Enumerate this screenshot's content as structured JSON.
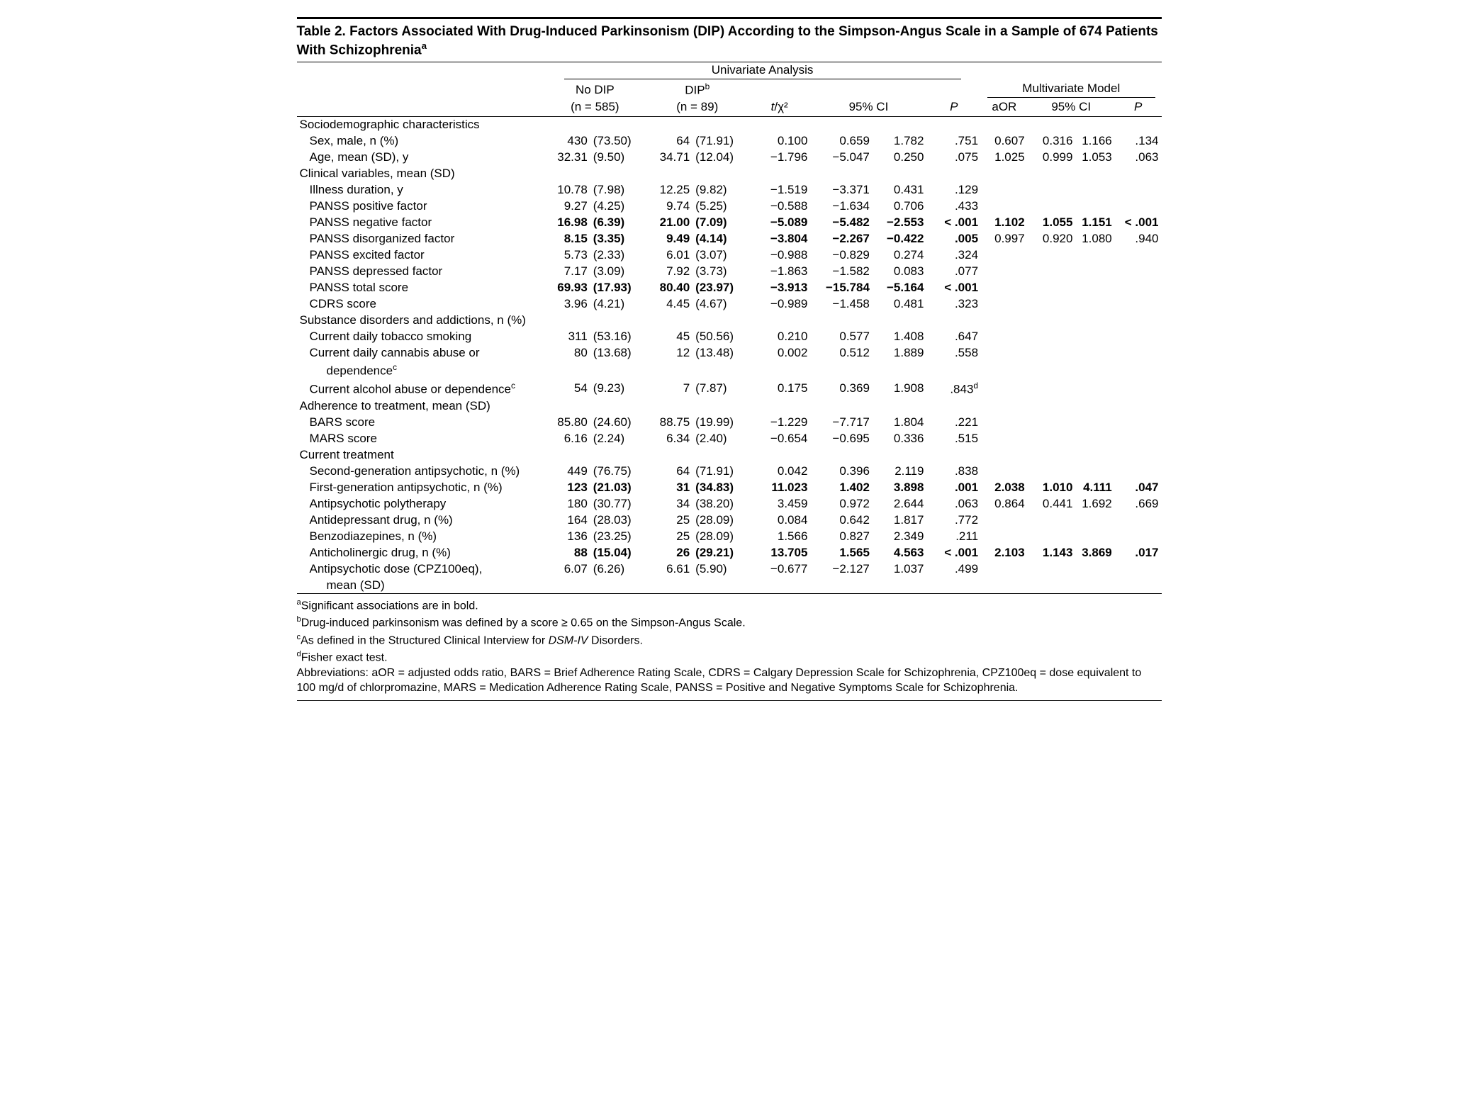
{
  "title": "Table 2. Factors Associated With Drug-Induced Parkinsonism (DIP) According to the Simpson-Angus Scale in a Sample of 674 Patients With Schizophrenia",
  "title_sup": "a",
  "headers": {
    "univariate": "Univariate Analysis",
    "multivariate": "Multivariate Model",
    "nodip_l1": "No DIP",
    "nodip_l2": "(n = 585)",
    "dip_l1_pre": "DIP",
    "dip_l1_sup": "b",
    "dip_l2": "(n = 89)",
    "stat_pre": "t",
    "stat_post": "/χ²",
    "ci": "95% CI",
    "p": "P",
    "aor": "aOR"
  },
  "sections": [
    {
      "label": "Sociodemographic characteristics",
      "rows": [
        {
          "label": "Sex, male, n (%)",
          "nd1": "430",
          "nd1p": "(73.50)",
          "nd2": "64",
          "nd2p": "(71.91)",
          "stat": "0.100",
          "cil": "0.659",
          "cih": "1.782",
          "p": ".751",
          "aor": "0.607",
          "mcil": "0.316",
          "mcih": "1.166",
          "mp": ".134"
        },
        {
          "label": "Age, mean (SD), y",
          "nd1": "32.31",
          "nd1p": "(9.50)",
          "nd2": "34.71",
          "nd2p": "(12.04)",
          "stat": "−1.796",
          "cil": "−5.047",
          "cih": "0.250",
          "p": ".075",
          "aor": "1.025",
          "mcil": "0.999",
          "mcih": "1.053",
          "mp": ".063"
        }
      ]
    },
    {
      "label": "Clinical variables, mean (SD)",
      "rows": [
        {
          "label": "Illness duration, y",
          "nd1": "10.78",
          "nd1p": "(7.98)",
          "nd2": "12.25",
          "nd2p": "(9.82)",
          "stat": "−1.519",
          "cil": "−3.371",
          "cih": "0.431",
          "p": ".129"
        },
        {
          "label": "PANSS positive factor",
          "nd1": "9.27",
          "nd1p": "(4.25)",
          "nd2": "9.74",
          "nd2p": "(5.25)",
          "stat": "−0.588",
          "cil": "−1.634",
          "cih": "0.706",
          "p": ".433"
        },
        {
          "label": "PANSS negative factor",
          "bold": true,
          "nd1": "16.98",
          "nd1p": "(6.39)",
          "nd2": "21.00",
          "nd2p": "(7.09)",
          "stat": "−5.089",
          "cil": "−5.482",
          "cih": "−2.553",
          "p": "< .001",
          "aor": "1.102",
          "mcil": "1.055",
          "mcih": "1.151",
          "mp": "< .001",
          "mbold": true
        },
        {
          "label": "PANSS disorganized factor",
          "bold": true,
          "nd1": "8.15",
          "nd1p": "(3.35)",
          "nd2": "9.49",
          "nd2p": "(4.14)",
          "stat": "−3.804",
          "cil": "−2.267",
          "cih": "−0.422",
          "p": ".005",
          "aor": "0.997",
          "mcil": "0.920",
          "mcih": "1.080",
          "mp": ".940"
        },
        {
          "label": "PANSS excited factor",
          "nd1": "5.73",
          "nd1p": "(2.33)",
          "nd2": "6.01",
          "nd2p": "(3.07)",
          "stat": "−0.988",
          "cil": "−0.829",
          "cih": "0.274",
          "p": ".324"
        },
        {
          "label": "PANSS depressed factor",
          "nd1": "7.17",
          "nd1p": "(3.09)",
          "nd2": "7.92",
          "nd2p": "(3.73)",
          "stat": "−1.863",
          "cil": "−1.582",
          "cih": "0.083",
          "p": ".077"
        },
        {
          "label": "PANSS total score",
          "bold": true,
          "nd1": "69.93",
          "nd1p": "(17.93)",
          "nd2": "80.40",
          "nd2p": "(23.97)",
          "stat": "−3.913",
          "cil": "−15.784",
          "cih": "−5.164",
          "p": "< .001"
        },
        {
          "label": "CDRS score",
          "nd1": "3.96",
          "nd1p": "(4.21)",
          "nd2": "4.45",
          "nd2p": "(4.67)",
          "stat": "−0.989",
          "cil": "−1.458",
          "cih": "0.481",
          "p": ".323"
        }
      ]
    },
    {
      "label": "Substance disorders and addictions, n (%)",
      "rows": [
        {
          "label": "Current daily tobacco smoking",
          "nd1": "311",
          "nd1p": "(53.16)",
          "nd2": "45",
          "nd2p": "(50.56)",
          "stat": "0.210",
          "cil": "0.577",
          "cih": "1.408",
          "p": ".647"
        },
        {
          "label": "Current daily cannabis abuse or",
          "label2": "dependence",
          "sup": "c",
          "nd1": "80",
          "nd1p": "(13.68)",
          "nd2": "12",
          "nd2p": "(13.48)",
          "stat": "0.002",
          "cil": "0.512",
          "cih": "1.889",
          "p": ".558"
        },
        {
          "label": "Current alcohol abuse or dependence",
          "sup_inline": "c",
          "nd1": "54",
          "nd1p": "(9.23)",
          "nd2": "7",
          "nd2p": "(7.87)",
          "stat": "0.175",
          "cil": "0.369",
          "cih": "1.908",
          "p": ".843",
          "p_sup": "d"
        }
      ]
    },
    {
      "label": "Adherence to treatment, mean (SD)",
      "rows": [
        {
          "label": "BARS score",
          "nd1": "85.80",
          "nd1p": "(24.60)",
          "nd2": "88.75",
          "nd2p": "(19.99)",
          "stat": "−1.229",
          "cil": "−7.717",
          "cih": "1.804",
          "p": ".221"
        },
        {
          "label": "MARS score",
          "nd1": "6.16",
          "nd1p": "(2.24)",
          "nd2": "6.34",
          "nd2p": "(2.40)",
          "stat": "−0.654",
          "cil": "−0.695",
          "cih": "0.336",
          "p": ".515"
        }
      ]
    },
    {
      "label": "Current treatment",
      "rows": [
        {
          "label": "Second-generation antipsychotic, n (%)",
          "nd1": "449",
          "nd1p": "(76.75)",
          "nd2": "64",
          "nd2p": "(71.91)",
          "stat": "0.042",
          "cil": "0.396",
          "cih": "2.119",
          "p": ".838"
        },
        {
          "label": "First-generation antipsychotic, n (%)",
          "bold": true,
          "nd1": "123",
          "nd1p": "(21.03)",
          "nd2": "31",
          "nd2p": "(34.83)",
          "stat": "11.023",
          "cil": "1.402",
          "cih": "3.898",
          "p": ".001",
          "aor": "2.038",
          "mcil": "1.010",
          "mcih": "4.111",
          "mp": ".047",
          "mbold": true
        },
        {
          "label": "Antipsychotic polytherapy",
          "nd1": "180",
          "nd1p": "(30.77)",
          "nd2": "34",
          "nd2p": "(38.20)",
          "stat": "3.459",
          "cil": "0.972",
          "cih": "2.644",
          "p": ".063",
          "aor": "0.864",
          "mcil": "0.441",
          "mcih": "1.692",
          "mp": ".669"
        },
        {
          "label": "Antidepressant drug, n (%)",
          "nd1": "164",
          "nd1p": "(28.03)",
          "nd2": "25",
          "nd2p": "(28.09)",
          "stat": "0.084",
          "cil": "0.642",
          "cih": "1.817",
          "p": ".772"
        },
        {
          "label": "Benzodiazepines, n (%)",
          "nd1": "136",
          "nd1p": "(23.25)",
          "nd2": "25",
          "nd2p": "(28.09)",
          "stat": "1.566",
          "cil": "0.827",
          "cih": "2.349",
          "p": ".211"
        },
        {
          "label": "Anticholinergic drug, n (%)",
          "bold": true,
          "nd1": "88",
          "nd1p": "(15.04)",
          "nd2": "26",
          "nd2p": "(29.21)",
          "stat": "13.705",
          "cil": "1.565",
          "cih": "4.563",
          "p": "< .001",
          "aor": "2.103",
          "mcil": "1.143",
          "mcih": "3.869",
          "mp": ".017",
          "mbold": true
        },
        {
          "label": "Antipsychotic dose (CPZ100eq),",
          "label2": "mean (SD)",
          "nd1": "6.07",
          "nd1p": "(6.26)",
          "nd2": "6.61",
          "nd2p": "(5.90)",
          "stat": "−0.677",
          "cil": "−2.127",
          "cih": "1.037",
          "p": ".499"
        }
      ]
    }
  ],
  "footnotes": {
    "a": "Significant associations are in bold.",
    "b": "Drug-induced parkinsonism was defined by a score ≥ 0.65 on the Simpson-Angus Scale.",
    "c_pre": "As defined in the Structured Clinical Interview for ",
    "c_ital": "DSM-IV",
    "c_post": " Disorders.",
    "d": "Fisher exact test.",
    "abbr": "Abbreviations: aOR = adjusted odds ratio, BARS = Brief Adherence Rating Scale, CDRS = Calgary Depression Scale for Schizophrenia, CPZ100eq = dose equivalent to 100 mg/d of chlorpromazine, MARS = Medication Adherence Rating Scale, PANSS = Positive and Negative Symptoms Scale for Schizophrenia."
  }
}
